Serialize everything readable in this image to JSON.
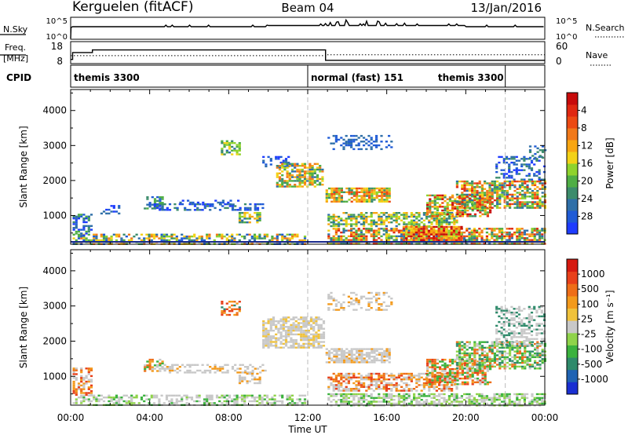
{
  "header": {
    "station": "Kerguelen (fitACF)",
    "beam": "Beam 04",
    "date": "13/Jan/2016"
  },
  "colors": {
    "noise_line": "#000000",
    "guide_line": "#bbbbbb",
    "ground_scatter": "#c8c8c8",
    "range_floor_line": "#1a2a8c"
  },
  "strips": {
    "noise": {
      "left_label": "N.Sky",
      "right_label": "N.Search",
      "left_ticks": [
        "10^5",
        "10^0"
      ],
      "right_ticks": [
        "10^5",
        "10^0"
      ]
    },
    "freq": {
      "left_label_top": "Freq.",
      "left_label_bottom": "[MHz]",
      "right_label": "Nave",
      "left_ticks": [
        "18",
        "8"
      ],
      "right_ticks": [
        "60",
        "0"
      ],
      "freq_steps": [
        {
          "t0": 0.0,
          "t1": 0.1,
          "mhz": 9.5
        },
        {
          "t0": 0.1,
          "t1": 1.1,
          "mhz": 13.5
        },
        {
          "t0": 1.1,
          "t1": 12.9,
          "mhz": 15.0
        },
        {
          "t0": 12.9,
          "t1": 24.0,
          "mhz": 9.0
        }
      ],
      "nave_steps": [
        {
          "t0": 0.0,
          "t1": 1.1,
          "n": 22
        },
        {
          "t0": 1.1,
          "t1": 12.9,
          "n": 22
        },
        {
          "t0": 12.9,
          "t1": 24.0,
          "n": 25
        }
      ]
    },
    "cpid": {
      "label": "CPID",
      "segments": [
        {
          "t0": 0.0,
          "t1": 12.0,
          "name": "themis 3300"
        },
        {
          "t0": 12.0,
          "t1": 22.0,
          "name": "normal (fast) 151"
        },
        {
          "t0": 22.0,
          "t1": 24.0,
          "name": "themis 3300"
        }
      ]
    }
  },
  "chart_data": [
    {
      "type": "heatmap",
      "name": "power",
      "ylabel": "Slant Range [km]",
      "xlabel": "Time UT",
      "xlim": [
        0,
        24
      ],
      "ylim": [
        180,
        4600
      ],
      "x_ticks": [
        0,
        4,
        8,
        12,
        16,
        20,
        24
      ],
      "x_tick_labels": [
        "00:00",
        "04:00",
        "08:00",
        "12:00",
        "16:00",
        "20:00",
        "00:00"
      ],
      "y_ticks": [
        1000,
        2000,
        3000,
        4000
      ],
      "colorbar": {
        "label": "Power [dB]",
        "ticks": [
          "4",
          "8",
          "12",
          "16",
          "20",
          "24",
          "28"
        ],
        "colors": [
          "#1e3cff",
          "#1f5bd6",
          "#2f6fa8",
          "#3c8c6c",
          "#4fae45",
          "#8fd32d",
          "#f3d217",
          "#f8a612",
          "#f1791a",
          "#ec4a13",
          "#e02811",
          "#c80b0b"
        ]
      },
      "blobs": [
        {
          "t0": 0.1,
          "t1": 11.8,
          "r0": 180,
          "r1": 480,
          "lvl": [
            1,
            2,
            3,
            4,
            5,
            6,
            7,
            8
          ],
          "density": 0.55
        },
        {
          "t0": 0.1,
          "t1": 1.0,
          "r0": 450,
          "r1": 1050,
          "lvl": [
            0,
            1,
            2,
            3,
            4
          ],
          "density": 0.5
        },
        {
          "t0": 1.5,
          "t1": 2.5,
          "r0": 1050,
          "r1": 1300,
          "lvl": [
            0,
            1,
            2
          ],
          "density": 0.4
        },
        {
          "t0": 3.7,
          "t1": 4.6,
          "r0": 1200,
          "r1": 1550,
          "lvl": [
            1,
            2,
            3,
            4
          ],
          "density": 0.45
        },
        {
          "t0": 4.2,
          "t1": 9.9,
          "r0": 1150,
          "r1": 1350,
          "lvl": [
            0,
            1,
            2,
            3
          ],
          "density": 0.45
        },
        {
          "t0": 5.5,
          "t1": 8.5,
          "r0": 1300,
          "r1": 1450,
          "lvl": [
            0,
            1,
            2
          ],
          "density": 0.35
        },
        {
          "t0": 7.6,
          "t1": 8.5,
          "r0": 2750,
          "r1": 3150,
          "lvl": [
            2,
            3,
            4,
            5,
            6
          ],
          "density": 0.6
        },
        {
          "t0": 8.5,
          "t1": 9.6,
          "r0": 780,
          "r1": 1100,
          "lvl": [
            2,
            3,
            4,
            5,
            6,
            7
          ],
          "density": 0.55
        },
        {
          "t0": 9.7,
          "t1": 11.0,
          "r0": 2400,
          "r1": 2700,
          "lvl": [
            0,
            1,
            2
          ],
          "density": 0.4
        },
        {
          "t0": 10.4,
          "t1": 12.8,
          "r0": 1800,
          "r1": 2500,
          "lvl": [
            2,
            3,
            4,
            5,
            6,
            7,
            8
          ],
          "density": 0.75
        },
        {
          "t0": 12.9,
          "t1": 16.2,
          "r0": 1400,
          "r1": 1800,
          "lvl": [
            3,
            4,
            5,
            6,
            7,
            8,
            9
          ],
          "density": 0.8
        },
        {
          "t0": 13.0,
          "t1": 16.2,
          "r0": 2900,
          "r1": 3300,
          "lvl": [
            1,
            2
          ],
          "density": 0.35
        },
        {
          "t0": 13.0,
          "t1": 19.5,
          "r0": 700,
          "r1": 1100,
          "lvl": [
            2,
            3,
            4,
            5,
            6,
            7
          ],
          "density": 0.6
        },
        {
          "t0": 13.0,
          "t1": 24.0,
          "r0": 180,
          "r1": 650,
          "lvl": [
            2,
            3,
            4,
            5,
            6,
            7,
            8,
            9,
            10
          ],
          "density": 0.7
        },
        {
          "t0": 16.8,
          "t1": 19.8,
          "r0": 300,
          "r1": 700,
          "lvl": [
            5,
            6,
            7,
            8,
            9,
            10,
            11
          ],
          "density": 0.75
        },
        {
          "t0": 18.0,
          "t1": 21.3,
          "r0": 1000,
          "r1": 1600,
          "lvl": [
            3,
            4,
            5,
            6,
            7,
            8,
            9,
            10,
            11
          ],
          "density": 0.75
        },
        {
          "t0": 19.5,
          "t1": 24.0,
          "r0": 1200,
          "r1": 2000,
          "lvl": [
            2,
            3,
            4,
            5,
            6,
            7,
            8,
            9,
            10
          ],
          "density": 0.65
        },
        {
          "t0": 21.5,
          "t1": 24.0,
          "r0": 2000,
          "r1": 2700,
          "lvl": [
            0,
            1,
            2,
            3
          ],
          "density": 0.4
        },
        {
          "t0": 23.2,
          "t1": 24.0,
          "r0": 2650,
          "r1": 3000,
          "lvl": [
            1,
            2,
            3
          ],
          "density": 0.5
        }
      ]
    },
    {
      "type": "heatmap",
      "name": "velocity",
      "ylabel": "Slant Range [km]",
      "xlabel": "Time UT",
      "xlim": [
        0,
        24
      ],
      "ylim": [
        180,
        4600
      ],
      "x_ticks": [
        0,
        4,
        8,
        12,
        16,
        20,
        24
      ],
      "x_tick_labels": [
        "00:00",
        "04:00",
        "08:00",
        "12:00",
        "16:00",
        "20:00",
        "00:00"
      ],
      "y_ticks": [
        1000,
        2000,
        3000,
        4000
      ],
      "colorbar": {
        "label": "Velocity [m s⁻¹]",
        "ticks": [
          "1000",
          "500",
          "100",
          "25",
          "-25",
          "-100",
          "-500",
          "-1000"
        ],
        "colors": [
          "#1a2fd2",
          "#2063b3",
          "#2f8a6b",
          "#3bb23e",
          "#8fd34a",
          "#c8c8c8",
          "#f0c23b",
          "#f39a1c",
          "#ee6e18",
          "#e8401a",
          "#d61a10"
        ]
      },
      "blobs": [
        {
          "t0": 0.1,
          "t1": 11.8,
          "r0": 180,
          "r1": 480,
          "lvl": [
            5,
            5,
            5,
            4,
            3
          ],
          "density": 0.55
        },
        {
          "t0": 0.1,
          "t1": 1.1,
          "r0": 450,
          "r1": 1250,
          "lvl": [
            5,
            7,
            8,
            9
          ],
          "density": 0.5
        },
        {
          "t0": 3.7,
          "t1": 4.6,
          "r0": 1150,
          "r1": 1500,
          "lvl": [
            5,
            7,
            8,
            3
          ],
          "density": 0.45
        },
        {
          "t0": 4.2,
          "t1": 9.9,
          "r0": 1100,
          "r1": 1350,
          "lvl": [
            5,
            5,
            5,
            7
          ],
          "density": 0.45
        },
        {
          "t0": 7.6,
          "t1": 8.5,
          "r0": 2750,
          "r1": 3150,
          "lvl": [
            7,
            8,
            9,
            2
          ],
          "density": 0.6
        },
        {
          "t0": 8.5,
          "t1": 9.6,
          "r0": 780,
          "r1": 1100,
          "lvl": [
            5,
            5,
            7
          ],
          "density": 0.55
        },
        {
          "t0": 9.7,
          "t1": 12.8,
          "r0": 1800,
          "r1": 2700,
          "lvl": [
            5,
            5,
            5,
            6
          ],
          "density": 0.7
        },
        {
          "t0": 12.9,
          "t1": 16.2,
          "r0": 1400,
          "r1": 1800,
          "lvl": [
            5,
            5,
            5,
            7
          ],
          "density": 0.75
        },
        {
          "t0": 13.0,
          "t1": 16.2,
          "r0": 2900,
          "r1": 3400,
          "lvl": [
            5,
            5,
            7
          ],
          "density": 0.35
        },
        {
          "t0": 13.0,
          "t1": 19.5,
          "r0": 600,
          "r1": 1100,
          "lvl": [
            5,
            5,
            7,
            8,
            9
          ],
          "density": 0.6
        },
        {
          "t0": 13.0,
          "t1": 24.0,
          "r0": 180,
          "r1": 520,
          "lvl": [
            5,
            5,
            4,
            3
          ],
          "density": 0.65
        },
        {
          "t0": 18.0,
          "t1": 21.3,
          "r0": 800,
          "r1": 1500,
          "lvl": [
            7,
            8,
            9,
            5,
            3
          ],
          "density": 0.7
        },
        {
          "t0": 19.5,
          "t1": 24.0,
          "r0": 1200,
          "r1": 2000,
          "lvl": [
            3,
            2,
            5,
            8,
            4
          ],
          "density": 0.65
        },
        {
          "t0": 21.5,
          "t1": 24.0,
          "r0": 1900,
          "r1": 3000,
          "lvl": [
            5,
            5,
            2
          ],
          "density": 0.45
        }
      ]
    }
  ]
}
